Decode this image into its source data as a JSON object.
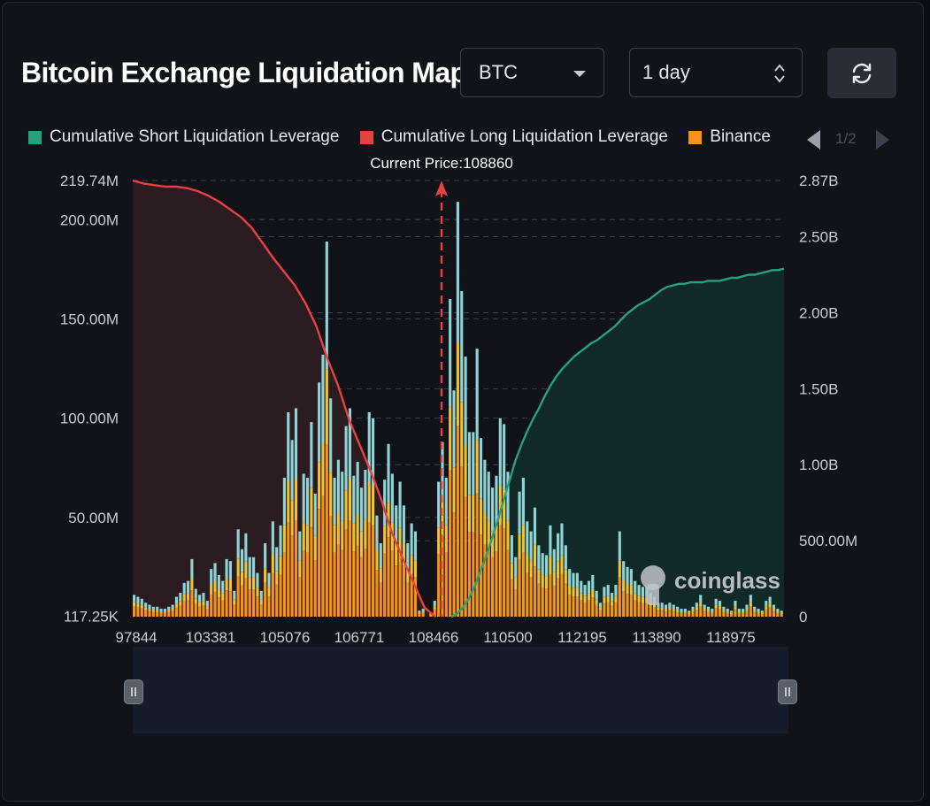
{
  "header": {
    "title": "Bitcoin Exchange Liquidation Map",
    "coin_select": "BTC",
    "range_select": "1 day",
    "refresh_icon": "refresh-icon"
  },
  "legend": {
    "items": [
      {
        "label": "Cumulative Short Liquidation Leverage",
        "color": "#26a17b"
      },
      {
        "label": "Cumulative Long Liquidation Leverage",
        "color": "#e84142"
      },
      {
        "label": "Binance",
        "color": "#f7931a"
      }
    ],
    "page": "1/2"
  },
  "current_price_label": "Current Price:108860",
  "watermark": "coinglass",
  "colors": {
    "okx_bar": "#8fd3d4",
    "bybit_bar": "#f2c12e",
    "binance_bar": "#f7931a",
    "short_line": "#26a17b",
    "long_line": "#e84142",
    "current_price_line": "#e84142"
  },
  "chart_data": {
    "type": "bar",
    "x_tick_labels": [
      "97844",
      "103381",
      "105076",
      "106771",
      "108466",
      "110500",
      "112195",
      "113890",
      "118975"
    ],
    "current_price": 108860,
    "y_left": {
      "ticks": [
        "117.25K",
        "50.00M",
        "100.00M",
        "150.00M",
        "200.00M",
        "219.74M"
      ],
      "tick_values": [
        0.11725,
        50,
        100,
        150,
        200,
        219.74
      ],
      "range": [
        0,
        219.74
      ],
      "unit": "M"
    },
    "y_right": {
      "ticks": [
        "0",
        "500.00M",
        "1.00B",
        "1.50B",
        "2.00B",
        "2.50B",
        "2.87B"
      ],
      "tick_values": [
        0,
        0.5,
        1.0,
        1.5,
        2.0,
        2.5,
        2.87
      ],
      "range": [
        0,
        2.87
      ],
      "unit": "B"
    },
    "bar_totals_M": [
      11,
      10,
      9,
      7,
      6,
      5,
      5,
      4,
      4,
      5,
      6,
      10,
      12,
      17,
      18,
      29,
      14,
      11,
      12,
      8,
      24,
      27,
      21,
      18,
      29,
      28,
      13,
      44,
      34,
      42,
      30,
      30,
      22,
      13,
      37,
      22,
      48,
      35,
      46,
      70,
      103,
      89,
      105,
      43,
      72,
      70,
      98,
      62,
      118,
      132,
      189,
      110,
      70,
      79,
      73,
      96,
      105,
      71,
      78,
      65,
      74,
      103,
      100,
      51,
      37,
      69,
      87,
      72,
      56,
      68,
      56,
      37,
      47,
      43,
      3,
      4,
      0,
      2,
      8,
      68,
      88,
      70,
      160,
      114,
      209,
      164,
      131,
      93,
      93,
      135,
      90,
      79,
      73,
      65,
      71,
      100,
      97,
      73,
      41,
      30,
      63,
      70,
      48,
      43,
      55,
      36,
      32,
      31,
      46,
      34,
      42,
      47,
      36,
      24,
      22,
      22,
      18,
      16,
      18,
      21,
      13,
      7,
      15,
      16,
      12,
      16,
      43,
      28,
      25,
      24,
      18,
      16,
      15,
      15,
      12,
      10,
      7,
      7,
      6,
      7,
      6,
      5,
      4,
      4,
      3,
      5,
      7,
      11,
      6,
      5,
      4,
      9,
      8,
      5,
      4,
      3,
      8,
      4,
      4,
      6,
      11,
      5,
      4,
      3,
      8,
      10,
      6,
      4,
      3
    ],
    "short_cumulative_B": [
      0,
      0.02,
      0.06,
      0.12,
      0.2,
      0.3,
      0.4,
      0.52,
      0.64,
      0.77,
      0.9,
      1.03,
      1.13,
      1.22,
      1.3,
      1.37,
      1.45,
      1.52,
      1.58,
      1.63,
      1.67,
      1.71,
      1.74,
      1.77,
      1.8,
      1.82,
      1.85,
      1.88,
      1.91,
      1.95,
      1.99,
      2.02,
      2.05,
      2.07,
      2.09,
      2.12,
      2.15,
      2.17,
      2.18,
      2.19,
      2.19,
      2.2,
      2.2,
      2.2,
      2.21,
      2.21,
      2.21,
      2.22,
      2.23,
      2.23,
      2.24,
      2.25,
      2.25,
      2.26,
      2.27,
      2.28,
      2.28,
      2.29
    ],
    "long_cumulative_B": [
      2.87,
      2.85,
      2.84,
      2.83,
      2.83,
      2.82,
      2.8,
      2.77,
      2.73,
      2.68,
      2.63,
      2.56,
      2.46,
      2.36,
      2.27,
      2.18,
      2.06,
      1.91,
      1.7,
      1.52,
      1.3,
      1.13,
      0.96,
      0.77,
      0.55,
      0.38,
      0.22,
      0.06,
      0
    ]
  }
}
